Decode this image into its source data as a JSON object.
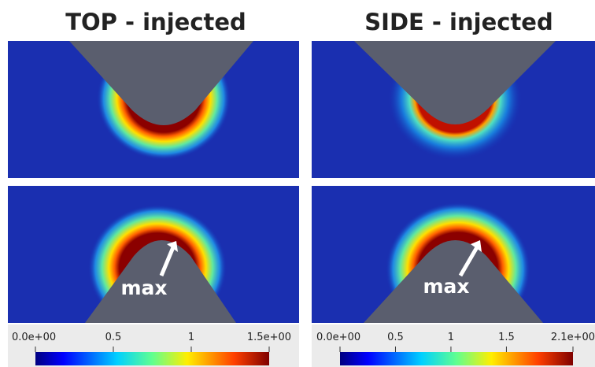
{
  "panels": [
    {
      "title": "TOP - injected",
      "annotation": "max",
      "colorbar": {
        "range": [
          0,
          1.5
        ],
        "ticks": [
          {
            "value": 0,
            "label": "0.0e+00"
          },
          0.5,
          1,
          {
            "value": 1.5,
            "label": "1.5e+00"
          }
        ]
      }
    },
    {
      "title": "SIDE - injected",
      "annotation": "max",
      "colorbar": {
        "range": [
          0,
          2.1
        ],
        "ticks": [
          {
            "value": 0,
            "label": "0.0e+00"
          },
          0.5,
          1,
          1.5,
          {
            "value": 2.1,
            "label": "2.1e+00"
          }
        ]
      }
    }
  ]
}
